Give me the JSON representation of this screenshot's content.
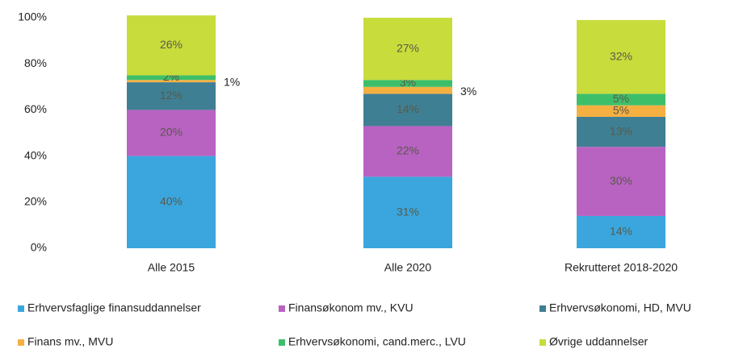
{
  "chart_data": {
    "type": "stacked_bar",
    "categories": [
      "Alle 2015",
      "Alle 2020",
      "Rekrutteret 2018-2020"
    ],
    "series": [
      {
        "name": "Erhvervsfaglige finansuddannelser",
        "color": "#3aa6dd",
        "values": [
          40,
          31,
          14
        ],
        "value_labels": [
          "40%",
          "31%",
          "14%"
        ]
      },
      {
        "name": "Finansøkonom mv., KVU",
        "color": "#b862c2",
        "values": [
          20,
          22,
          30
        ],
        "value_labels": [
          "20%",
          "22%",
          "30%"
        ]
      },
      {
        "name": "Erhvervsøkonomi, HD, MVU",
        "color": "#3f7f93",
        "values": [
          12,
          14,
          13
        ],
        "value_labels": [
          "12%",
          "14%",
          "13%"
        ]
      },
      {
        "name": "Finans mv., MVU",
        "color": "#f5b041",
        "values": [
          1,
          3,
          5
        ],
        "value_labels": [
          "1%",
          "3%",
          "5%"
        ]
      },
      {
        "name": "Erhvervsøkonomi, cand.merc., LVU",
        "color": "#3dbf6a",
        "values": [
          2,
          3,
          5
        ],
        "value_labels": [
          "2%",
          "3%",
          "5%"
        ]
      },
      {
        "name": "Øvrige uddannelser",
        "color": "#c8dc3c",
        "values": [
          26,
          27,
          32
        ],
        "value_labels": [
          "26%",
          "27%",
          "32%"
        ]
      }
    ],
    "ylim": [
      0,
      100
    ],
    "yticks": [
      {
        "value": 0,
        "label": "0%"
      },
      {
        "value": 20,
        "label": "20%"
      },
      {
        "value": 40,
        "label": "40%"
      },
      {
        "value": 60,
        "label": "60%"
      },
      {
        "value": 80,
        "label": "80%"
      },
      {
        "value": 100,
        "label": "100%"
      }
    ],
    "legend": "bottom"
  }
}
